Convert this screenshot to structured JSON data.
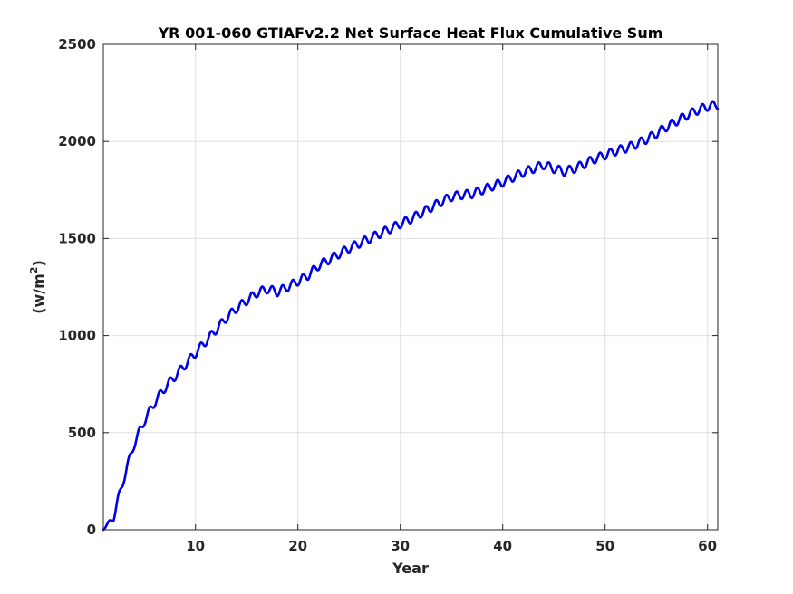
{
  "chart_data": {
    "type": "line",
    "title": "YR 001-060 GTIAFv2.2 Net Surface Heat Flux  Cumulative Sum",
    "xlabel": "Year",
    "ylabel_base": "(w/m",
    "ylabel_sup": "2",
    "ylabel_close": ")",
    "xlim": [
      1,
      61
    ],
    "ylim": [
      0,
      2500
    ],
    "xticks": [
      10,
      20,
      30,
      40,
      50,
      60
    ],
    "yticks": [
      0,
      500,
      1000,
      1500,
      2000,
      2500
    ],
    "grid": true,
    "colors": {
      "line": "#0000e6",
      "grid": "#dfdfdf",
      "axis": "#262626"
    },
    "seasonal_amplitude": 22,
    "series": [
      {
        "x": [
          1,
          2,
          3,
          4,
          5,
          6,
          7,
          8,
          9,
          10,
          11,
          12,
          13,
          14,
          15,
          16,
          17,
          18,
          19,
          20,
          21,
          22,
          23,
          24,
          25,
          26,
          27,
          28,
          29,
          30,
          31,
          32,
          33,
          34,
          35,
          36,
          37,
          38,
          39,
          40,
          41,
          42,
          43,
          44,
          45,
          46,
          47,
          48,
          49,
          50,
          51,
          52,
          53,
          54,
          55,
          56,
          57,
          58,
          59,
          60,
          61
        ],
        "values": [
          0,
          65,
          265,
          440,
          560,
          655,
          730,
          790,
          850,
          910,
          970,
          1030,
          1090,
          1140,
          1180,
          1220,
          1240,
          1225,
          1250,
          1280,
          1310,
          1360,
          1390,
          1420,
          1450,
          1475,
          1500,
          1525,
          1550,
          1575,
          1600,
          1630,
          1660,
          1690,
          1715,
          1725,
          1730,
          1750,
          1770,
          1790,
          1815,
          1840,
          1860,
          1880,
          1860,
          1845,
          1860,
          1885,
          1910,
          1930,
          1950,
          1965,
          1985,
          2010,
          2040,
          2075,
          2105,
          2135,
          2160,
          2180,
          2190
        ]
      }
    ]
  }
}
